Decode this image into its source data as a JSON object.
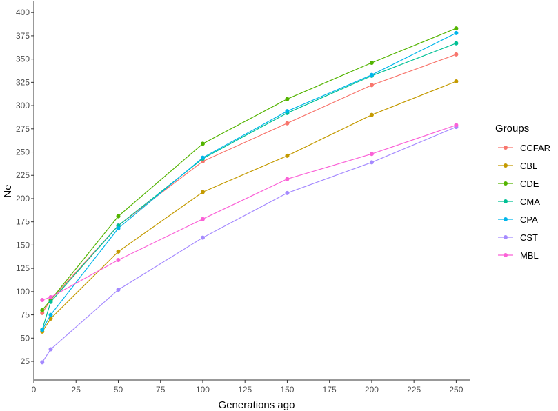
{
  "chart_data": {
    "type": "line",
    "xlabel": "Generations ago",
    "ylabel": "Ne",
    "xlim": [
      0,
      258
    ],
    "ylim": [
      5,
      412
    ],
    "x_ticks": [
      0,
      25,
      50,
      75,
      100,
      125,
      150,
      175,
      200,
      225,
      250
    ],
    "y_ticks": [
      25,
      50,
      75,
      100,
      125,
      150,
      175,
      200,
      225,
      250,
      275,
      300,
      325,
      350,
      375,
      400
    ],
    "grid": false,
    "legend": {
      "title": "Groups",
      "position": "right"
    },
    "x": [
      5,
      10,
      50,
      100,
      150,
      200,
      250
    ],
    "series": [
      {
        "name": "CCFAR",
        "color": "#F8766D",
        "values": [
          77,
          91,
          171,
          240,
          281,
          322,
          355
        ]
      },
      {
        "name": "CBL",
        "color": "#C49A00",
        "values": [
          57,
          71,
          143,
          207,
          246,
          290,
          326
        ]
      },
      {
        "name": "CDE",
        "color": "#53B400",
        "values": [
          80,
          91,
          181,
          259,
          307,
          346,
          383
        ]
      },
      {
        "name": "CMA",
        "color": "#00C094",
        "values": [
          59,
          89,
          171,
          243,
          292,
          332,
          367
        ]
      },
      {
        "name": "CPA",
        "color": "#00B6EB",
        "values": [
          59,
          75,
          168,
          244,
          294,
          333,
          378
        ]
      },
      {
        "name": "CST",
        "color": "#A58AFF",
        "values": [
          24,
          38,
          102,
          158,
          206,
          239,
          277
        ]
      },
      {
        "name": "MBL",
        "color": "#FB61D7",
        "values": [
          91,
          94,
          134,
          178,
          221,
          248,
          279
        ]
      }
    ]
  }
}
